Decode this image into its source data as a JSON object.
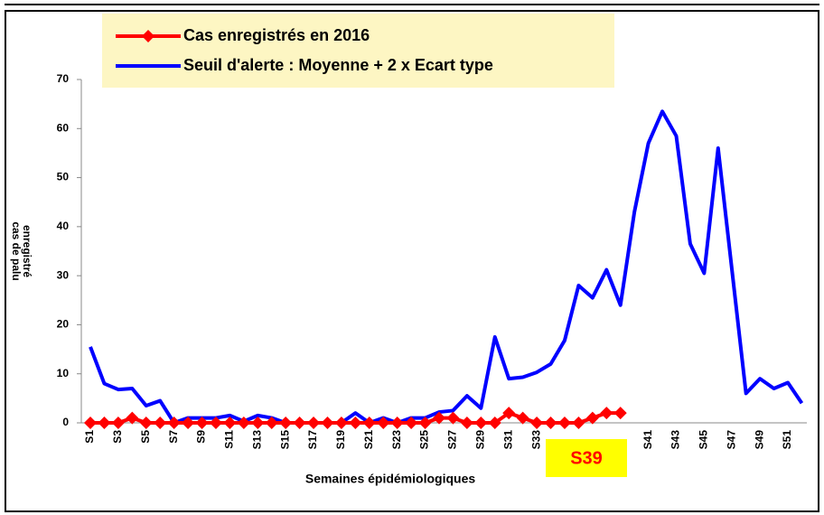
{
  "chart_data": {
    "type": "line",
    "x_label": "Semaines épidémiologiques",
    "y_label": [
      "cas de palu",
      "enregistré"
    ],
    "annotation": "S39",
    "categories": [
      "S1",
      null,
      "S3",
      null,
      "S5",
      null,
      "S7",
      null,
      "S9",
      null,
      "S11",
      null,
      "S13",
      null,
      "S15",
      null,
      "S17",
      null,
      "S19",
      null,
      "S21",
      null,
      "S23",
      null,
      "S25",
      null,
      "S27",
      null,
      "S29",
      null,
      "S31",
      null,
      "S33",
      null,
      null,
      null,
      null,
      null,
      null,
      null,
      "S41",
      null,
      "S43",
      null,
      "S45",
      null,
      "S47",
      null,
      "S49",
      null,
      "S51",
      null
    ],
    "series": [
      {
        "name": "Cas enregistrés en 2016",
        "color": "#ff0000",
        "marker": "diamond",
        "values": [
          0,
          0,
          0,
          1,
          0,
          0,
          0,
          0,
          0,
          0,
          0,
          0,
          0,
          0,
          0,
          0,
          0,
          0,
          0,
          0,
          0,
          0,
          0,
          0,
          0,
          1,
          1,
          0,
          0,
          0,
          2,
          1,
          0,
          0,
          0,
          0,
          1,
          2,
          2,
          null,
          null,
          null,
          null,
          null,
          null,
          null,
          null,
          null,
          null,
          null,
          null,
          null
        ]
      },
      {
        "name": "Seuil d'alerte : Moyenne + 2 x Ecart type",
        "color": "#0000ff",
        "values": [
          15.5,
          8,
          6.8,
          7,
          3.5,
          4.5,
          0,
          1,
          1,
          1,
          1.5,
          0.3,
          1.5,
          1,
          0,
          0,
          0,
          0,
          0,
          2,
          0,
          1,
          0,
          1,
          1,
          2.2,
          2.5,
          5.5,
          3,
          17.5,
          9,
          9.3,
          10.3,
          12,
          16.8,
          28,
          25.5,
          31.2,
          24,
          43,
          57,
          63.5,
          58.5,
          36.5,
          30.5,
          56,
          31,
          6,
          9,
          7,
          8.2,
          4
        ]
      }
    ],
    "ylim": [
      0,
      70
    ],
    "yticks": [
      0,
      10,
      20,
      30,
      40,
      50,
      60,
      70
    ],
    "grid": false
  }
}
